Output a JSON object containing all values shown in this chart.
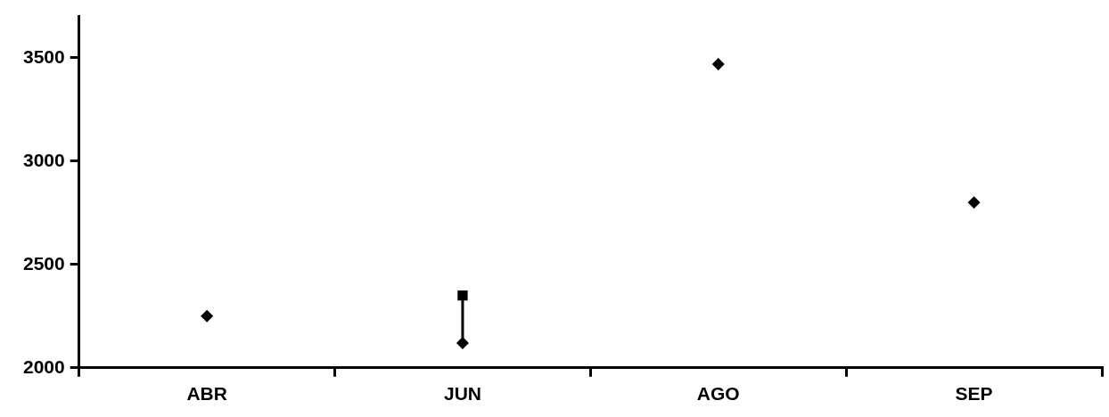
{
  "chart_data": {
    "type": "scatter",
    "categories": [
      "ABR",
      "JUN",
      "AGO",
      "SEP"
    ],
    "series": [
      {
        "type": "line",
        "color": "#000000",
        "marker": "none",
        "x": [
          "JUN",
          "JUN"
        ],
        "values": [
          2120,
          2350
        ]
      },
      {
        "color": "#000000",
        "marker": "diamond",
        "values": [
          2250,
          2120,
          3470,
          2800
        ]
      },
      {
        "color": "#000000",
        "marker": "square",
        "values": [
          null,
          2350,
          null,
          null
        ]
      }
    ],
    "ylim": [
      2000,
      3700
    ],
    "yticks": [
      2000,
      2500,
      3000,
      3500
    ],
    "grid": false,
    "legend": false
  }
}
